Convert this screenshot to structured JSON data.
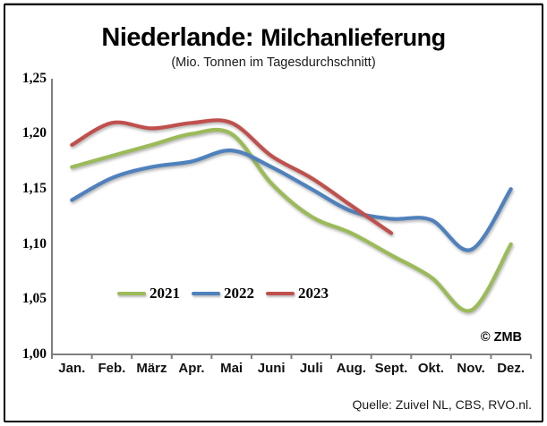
{
  "title": {
    "prefix": "Niederlande:",
    "main": "Milchanlieferung",
    "subtitle": "(Mio. Tonnen im Tagesdurchschnitt)"
  },
  "watermark": "© ZMB",
  "source": "Quelle: Zuivel NL, CBS, RVO.nl.",
  "chart_data": {
    "type": "line",
    "title": "Niederlande: Milchanlieferung",
    "subtitle": "(Mio. Tonnen im Tagesdurchschnitt)",
    "xlabel": "",
    "ylabel": "Mio. Tonnen im Tagesdurchschnitt",
    "ylim": [
      1.0,
      1.25
    ],
    "grid": false,
    "legend_position": "inside-bottom-left",
    "categories": [
      "Jan.",
      "Feb.",
      "März",
      "Apr.",
      "Mai",
      "Juni",
      "Juli",
      "Aug.",
      "Sept.",
      "Okt.",
      "Nov.",
      "Dez."
    ],
    "yticks": [
      "1,00",
      "1,05",
      "1,10",
      "1,15",
      "1,20",
      "1,25"
    ],
    "axis_color": "#7F7F7F",
    "series": [
      {
        "name": "2021",
        "color": "#9BBB59",
        "values": [
          1.17,
          1.18,
          1.19,
          1.2,
          1.2,
          1.155,
          1.125,
          1.11,
          1.09,
          1.07,
          1.04,
          1.1
        ]
      },
      {
        "name": "2022",
        "color": "#4F81BD",
        "values": [
          1.14,
          1.16,
          1.17,
          1.175,
          1.185,
          1.17,
          1.15,
          1.13,
          1.123,
          1.122,
          1.095,
          1.15
        ]
      },
      {
        "name": "2023",
        "color": "#C0504D",
        "values": [
          1.19,
          1.21,
          1.205,
          1.21,
          1.21,
          1.18,
          1.16,
          1.135,
          1.11
        ]
      }
    ]
  }
}
